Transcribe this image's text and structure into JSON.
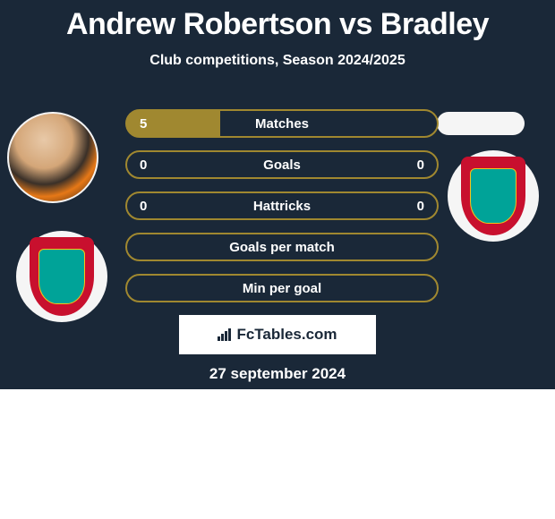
{
  "header": {
    "title": "Andrew Robertson vs Bradley",
    "subtitle": "Club competitions, Season 2024/2025"
  },
  "stats": {
    "rows": [
      {
        "label": "Matches",
        "left": "5",
        "right": "",
        "fill_left_pct": 30,
        "fill_right_pct": 0,
        "show_right": false
      },
      {
        "label": "Goals",
        "left": "0",
        "right": "0",
        "fill_left_pct": 0,
        "fill_right_pct": 0,
        "show_right": true
      },
      {
        "label": "Hattricks",
        "left": "0",
        "right": "0",
        "fill_left_pct": 0,
        "fill_right_pct": 0,
        "show_right": true
      },
      {
        "label": "Goals per match",
        "left": "",
        "right": "",
        "fill_left_pct": 0,
        "fill_right_pct": 0,
        "show_right": false
      },
      {
        "label": "Min per goal",
        "left": "",
        "right": "",
        "fill_left_pct": 0,
        "fill_right_pct": 0,
        "show_right": false
      }
    ],
    "bar_border_color": "#a08830",
    "bar_fill_color": "#a08830",
    "text_color": "#ffffff"
  },
  "branding": {
    "text": "FcTables.com"
  },
  "date": "27 september 2024",
  "colors": {
    "background_top": "#1a2838",
    "background_bottom": "#ffffff",
    "liverpool_red": "#c8102e",
    "liverpool_green": "#00a398"
  }
}
